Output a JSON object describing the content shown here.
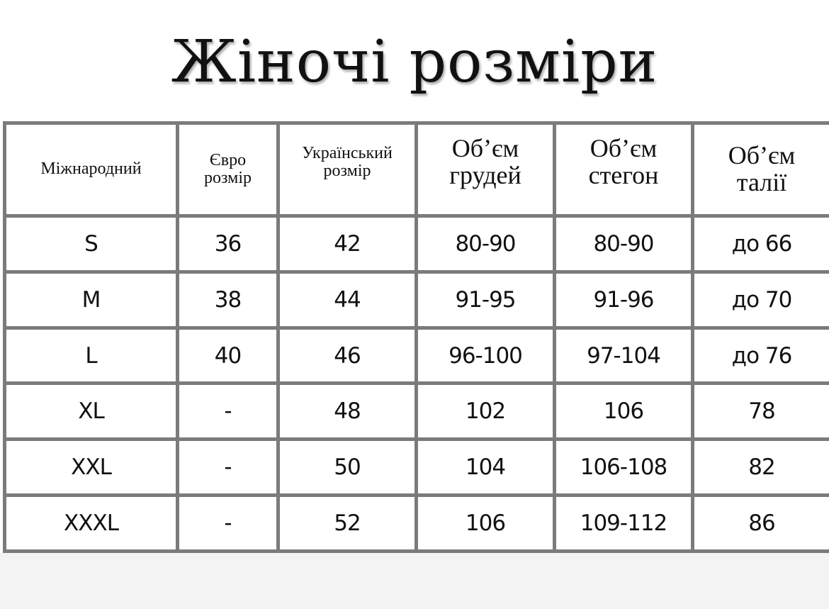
{
  "title": "Жіночі розміри",
  "table": {
    "headers": [
      "Міжнародний",
      "Євро розмір",
      "Український розмір",
      "Об’єм грудей",
      "Об’єм стегон",
      "Об’єм талії"
    ],
    "rows": [
      [
        "S",
        "36",
        "42",
        "80-90",
        "80-90",
        "до 66"
      ],
      [
        "M",
        "38",
        "44",
        "91-95",
        "91-96",
        "до 70"
      ],
      [
        "L",
        "40",
        "46",
        "96-100",
        "97-104",
        "до 76"
      ],
      [
        "XL",
        "-",
        "48",
        "102",
        "106",
        "78"
      ],
      [
        "XXL",
        "-",
        "50",
        "104",
        "106-108",
        "82"
      ],
      [
        "XXXL",
        "-",
        "52",
        "106",
        "109-112",
        "86"
      ]
    ]
  }
}
